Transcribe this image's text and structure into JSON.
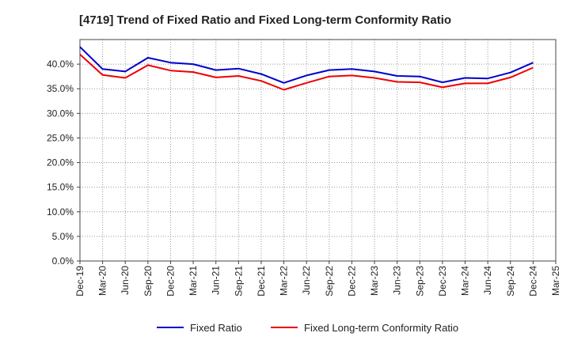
{
  "chart_data": {
    "type": "line",
    "title": "[4719]  Trend of Fixed Ratio and Fixed Long-term Conformity Ratio",
    "xlabel": "",
    "ylabel": "",
    "ylim": [
      0,
      45
    ],
    "y_ticks": [
      "0.0%",
      "5.0%",
      "10.0%",
      "15.0%",
      "20.0%",
      "25.0%",
      "30.0%",
      "35.0%",
      "40.0%"
    ],
    "y_tick_values": [
      0,
      5,
      10,
      15,
      20,
      25,
      30,
      35,
      40
    ],
    "x_tick_labels": [
      "Dec-19",
      "Mar-20",
      "Jun-20",
      "Sep-20",
      "Dec-20",
      "Mar-21",
      "Jun-21",
      "Sep-21",
      "Dec-21",
      "Mar-22",
      "Jun-22",
      "Sep-22",
      "Dec-22",
      "Mar-23",
      "Jun-23",
      "Sep-23",
      "Dec-23",
      "Mar-24",
      "Jun-24",
      "Sep-24",
      "Dec-24",
      "Mar-25"
    ],
    "x": [
      "Dec-19",
      "Mar-20",
      "Jun-20",
      "Sep-20",
      "Dec-20",
      "Mar-21",
      "Jun-21",
      "Sep-21",
      "Dec-21",
      "Mar-22",
      "Jun-22",
      "Sep-22",
      "Dec-22",
      "Mar-23",
      "Jun-23",
      "Sep-23",
      "Dec-23",
      "Mar-24",
      "Jun-24",
      "Sep-24",
      "Dec-24"
    ],
    "series": [
      {
        "name": "Fixed Ratio",
        "color": "#0000cc",
        "values": [
          43.5,
          39.0,
          38.5,
          41.3,
          40.3,
          40.0,
          38.8,
          39.1,
          38.0,
          36.2,
          37.7,
          38.8,
          39.0,
          38.5,
          37.6,
          37.5,
          36.3,
          37.2,
          37.1,
          38.3,
          40.3
        ]
      },
      {
        "name": "Fixed Long-term Conformity Ratio",
        "color": "#ee0000",
        "values": [
          42.0,
          37.8,
          37.2,
          39.8,
          38.7,
          38.4,
          37.3,
          37.6,
          36.6,
          34.8,
          36.2,
          37.5,
          37.7,
          37.2,
          36.4,
          36.3,
          35.3,
          36.1,
          36.1,
          37.3,
          39.3
        ]
      }
    ],
    "grid": true,
    "legend": "bottom"
  }
}
